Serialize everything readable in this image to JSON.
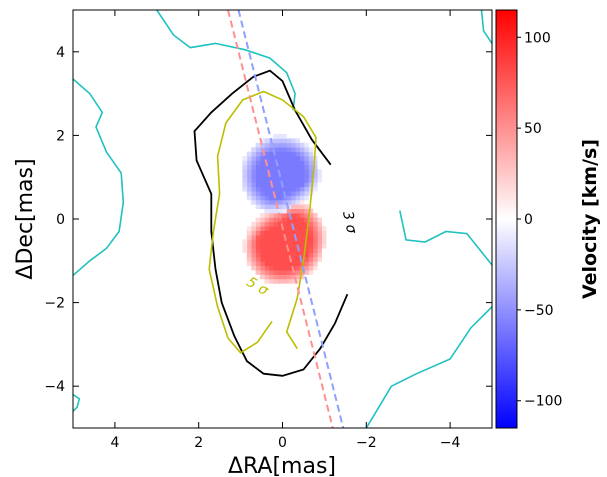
{
  "chart_data": {
    "type": "heatmap",
    "title": "",
    "xlabel": "ΔRA[mas]",
    "ylabel": "ΔDec[mas]",
    "xlim": [
      5,
      -5
    ],
    "ylim": [
      -5,
      5
    ],
    "x_ticks": [
      4,
      2,
      0,
      -2,
      -4
    ],
    "x_tick_labels": [
      "4",
      "2",
      "0",
      "−2",
      "−4"
    ],
    "y_ticks": [
      4,
      2,
      0,
      -2,
      -4
    ],
    "y_tick_labels": [
      "4",
      "2",
      "0",
      "−2",
      "−4"
    ],
    "grid": false,
    "colorbar": {
      "label": "Velocity [km/s]",
      "colormap": "bwr",
      "range": [
        -115,
        115
      ],
      "ticks": [
        100,
        50,
        0,
        -50,
        -100
      ],
      "tick_labels": [
        "100",
        "50",
        "0",
        "−50",
        "−100"
      ]
    },
    "contours": [
      {
        "name": "3 σ",
        "label": "3 σ",
        "color": "#000000",
        "points": [
          [
            -1.15,
            1.3
          ],
          [
            -0.7,
            1.9
          ],
          [
            -0.3,
            2.6
          ],
          [
            0.0,
            3.3
          ],
          [
            0.3,
            3.55
          ],
          [
            0.7,
            3.4
          ],
          [
            1.2,
            3.0
          ],
          [
            1.7,
            2.55
          ],
          [
            2.1,
            2.1
          ],
          [
            2.05,
            1.4
          ],
          [
            1.7,
            0.6
          ],
          [
            1.7,
            -0.3
          ],
          [
            1.6,
            -1.2
          ],
          [
            1.45,
            -2.0
          ],
          [
            1.15,
            -2.8
          ],
          [
            0.85,
            -3.4
          ],
          [
            0.45,
            -3.7
          ],
          [
            0.0,
            -3.75
          ],
          [
            -0.5,
            -3.6
          ],
          [
            -0.9,
            -3.1
          ],
          [
            -1.25,
            -2.5
          ],
          [
            -1.55,
            -1.8
          ]
        ],
        "closed": false
      },
      {
        "name": "5 σ",
        "label": "5 σ",
        "color": "#bdbd00",
        "points": [
          [
            0.25,
            -2.45
          ],
          [
            0.6,
            -2.95
          ],
          [
            1.0,
            -3.2
          ],
          [
            1.3,
            -2.85
          ],
          [
            1.55,
            -2.1
          ],
          [
            1.75,
            -1.2
          ],
          [
            1.65,
            -0.3
          ],
          [
            1.5,
            0.6
          ],
          [
            1.55,
            1.5
          ],
          [
            1.35,
            2.3
          ],
          [
            0.95,
            2.85
          ],
          [
            0.45,
            3.05
          ],
          [
            0.0,
            2.85
          ],
          [
            -0.5,
            2.45
          ],
          [
            -0.8,
            1.95
          ],
          [
            -0.75,
            1.2
          ],
          [
            -0.65,
            0.2
          ],
          [
            -0.5,
            -1.0
          ],
          [
            -0.35,
            -1.9
          ],
          [
            -0.1,
            -2.7
          ],
          [
            -0.35,
            -3.1
          ]
        ],
        "closed": false
      }
    ],
    "outer_contours": [
      {
        "color": "#22c1c1",
        "points": [
          [
            3.0,
            5.0
          ],
          [
            2.6,
            4.4
          ],
          [
            2.2,
            4.1
          ],
          [
            1.6,
            4.2
          ],
          [
            1.0,
            4.1
          ],
          [
            0.4,
            3.8
          ],
          [
            -0.2,
            3.6
          ],
          [
            -0.4,
            2.6
          ]
        ],
        "note": ""
      },
      {
        "color": "#22c1c1",
        "points": [
          [
            -4.9,
            5.0
          ],
          [
            -4.7,
            4.2
          ]
        ]
      }
    ],
    "position_angle_lines": [
      {
        "color": "#ff9090",
        "x1": 1.3,
        "y1": 5.0,
        "x2": -1.2,
        "y2": -5.0
      },
      {
        "color": "#8ea0ff",
        "x1": 1.05,
        "y1": 5.0,
        "x2": -1.45,
        "y2": -5.0
      }
    ],
    "velocity_field": {
      "blue_lobe": {
        "x_range": [
          -1.0,
          1.1
        ],
        "y_range": [
          0.1,
          2.0
        ],
        "peak_velocity": -60
      },
      "red_lobe": {
        "x_range": [
          -1.1,
          1.0
        ],
        "y_range": [
          -1.7,
          0.6
        ],
        "peak_velocity": 80
      }
    }
  }
}
